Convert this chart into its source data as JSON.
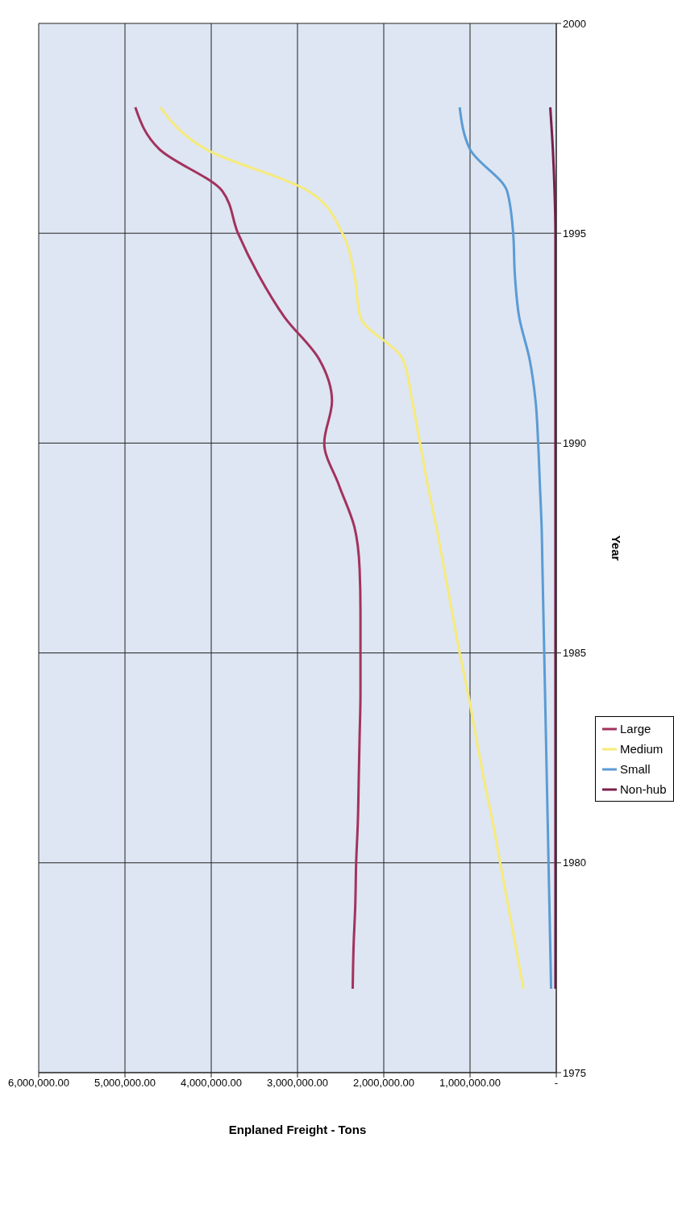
{
  "chart_data": {
    "type": "line",
    "orientation": "horizontal",
    "xlabel": "Enplaned Freight - Tons",
    "ylabel": "Year",
    "ylim": [
      1975,
      2000
    ],
    "yticks": [
      1975,
      1980,
      1985,
      1990,
      1995,
      2000
    ],
    "xlim": [
      6000000,
      0
    ],
    "xticks": [
      {
        "value": 0,
        "label": "-"
      },
      {
        "value": 1000000,
        "label": "1,000,000.00"
      },
      {
        "value": 2000000,
        "label": "2,000,000.00"
      },
      {
        "value": 3000000,
        "label": "3,000,000.00"
      },
      {
        "value": 4000000,
        "label": "4,000,000.00"
      },
      {
        "value": 5000000,
        "label": "5,000,000.00"
      },
      {
        "value": 6000000,
        "label": "6,000,000.00"
      }
    ],
    "x": [
      1977,
      1978,
      1979,
      1980,
      1981,
      1982,
      1983,
      1984,
      1985,
      1986,
      1987,
      1988,
      1989,
      1990,
      1991,
      1992,
      1993,
      1994,
      1995,
      1996,
      1997,
      1998
    ],
    "series": [
      {
        "name": "Large",
        "color": "#a3325e",
        "values": [
          2360000,
          2350000,
          2330000,
          2320000,
          2300000,
          2290000,
          2280000,
          2270000,
          2270000,
          2270000,
          2280000,
          2340000,
          2520000,
          2690000,
          2600000,
          2750000,
          3150000,
          3450000,
          3690000,
          3870000,
          4600000,
          4880000
        ]
      },
      {
        "name": "Medium",
        "color": "#f7ea7a",
        "values": [
          380000,
          470000,
          560000,
          650000,
          740000,
          840000,
          930000,
          1020000,
          1120000,
          1210000,
          1300000,
          1390000,
          1490000,
          1580000,
          1670000,
          1780000,
          2270000,
          2340000,
          2480000,
          2870000,
          4060000,
          4590000
        ]
      },
      {
        "name": "Small",
        "color": "#5b9bd5",
        "values": [
          60000,
          70000,
          80000,
          90000,
          100000,
          110000,
          120000,
          130000,
          140000,
          150000,
          160000,
          170000,
          190000,
          210000,
          240000,
          310000,
          430000,
          480000,
          500000,
          570000,
          1000000,
          1120000
        ]
      },
      {
        "name": "Non-hub",
        "color": "#7a1f4a",
        "values": [
          10000,
          10000,
          10000,
          10000,
          10000,
          10000,
          10000,
          10000,
          10000,
          10000,
          10000,
          10000,
          10000,
          10000,
          10000,
          10000,
          10000,
          10000,
          10000,
          20000,
          40000,
          70000
        ]
      }
    ],
    "grid": true,
    "legend": "right",
    "marker": "none",
    "line_style": "solid"
  }
}
